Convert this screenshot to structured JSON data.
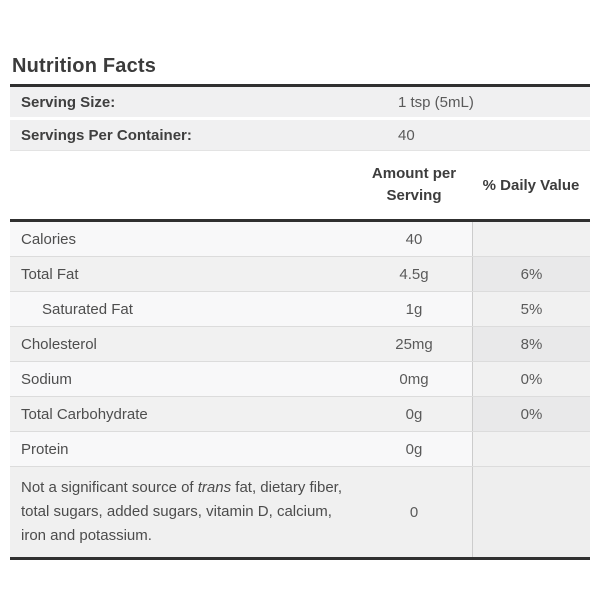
{
  "title": "Nutrition Facts",
  "serving_info": {
    "rows": [
      {
        "label": "Serving Size:",
        "value": "1 tsp (5mL)"
      },
      {
        "label": "Servings Per Container:",
        "value": "40"
      }
    ]
  },
  "table": {
    "headers": {
      "amount": "Amount per Serving",
      "daily_value": "% Daily Value"
    },
    "rows": [
      {
        "label": "Calories",
        "amount": "40",
        "daily_value": "",
        "indent": false
      },
      {
        "label": "Total Fat",
        "amount": "4.5g",
        "daily_value": "6%",
        "indent": false
      },
      {
        "label": "Saturated Fat",
        "amount": "1g",
        "daily_value": "5%",
        "indent": true
      },
      {
        "label": "Cholesterol",
        "amount": "25mg",
        "daily_value": "8%",
        "indent": false
      },
      {
        "label": "Sodium",
        "amount": "0mg",
        "daily_value": "0%",
        "indent": false
      },
      {
        "label": "Total Carbohydrate",
        "amount": "0g",
        "daily_value": "0%",
        "indent": false
      },
      {
        "label": "Protein",
        "amount": "0g",
        "daily_value": "",
        "indent": false
      }
    ],
    "footnote": {
      "pre": "Not a significant source of ",
      "italic": "trans",
      "post": " fat, dietary fiber, total sugars, added sugars, vitamin D, calcium, iron and potassium.",
      "amount": "0",
      "daily_value": ""
    }
  },
  "colors": {
    "accent_border": "#303030",
    "row_separator": "#dcdcdc",
    "column_divider": "#cccccc",
    "shaded_row": "#f1f1f1",
    "serving_row_bg": "#f0f0f1",
    "text_primary": "#3d3d3d",
    "text_secondary": "#5a5a5a"
  }
}
